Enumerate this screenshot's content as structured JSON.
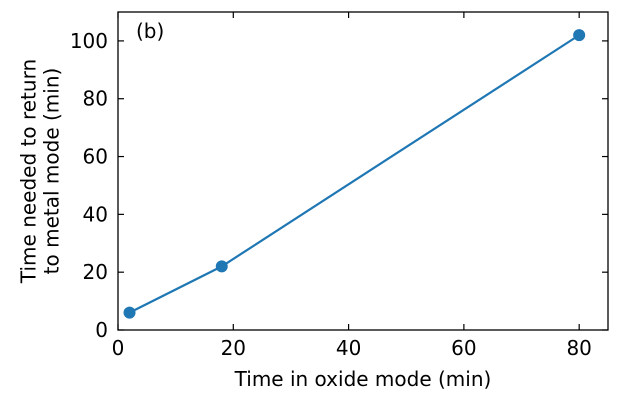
{
  "chart_data": {
    "type": "line",
    "panel_label": "(b)",
    "xlabel": "Time in oxide mode (min)",
    "ylabel_lines": [
      "Time needed to return",
      "to metal mode (min)"
    ],
    "xlim": [
      0,
      85
    ],
    "ylim": [
      0,
      110
    ],
    "xticks": [
      0,
      20,
      40,
      60,
      80
    ],
    "yticks": [
      0,
      20,
      40,
      60,
      80,
      100
    ],
    "grid": false,
    "series": [
      {
        "color": "#1f77b4",
        "x": [
          2,
          18,
          80
        ],
        "y": [
          6,
          22,
          102
        ]
      }
    ]
  }
}
